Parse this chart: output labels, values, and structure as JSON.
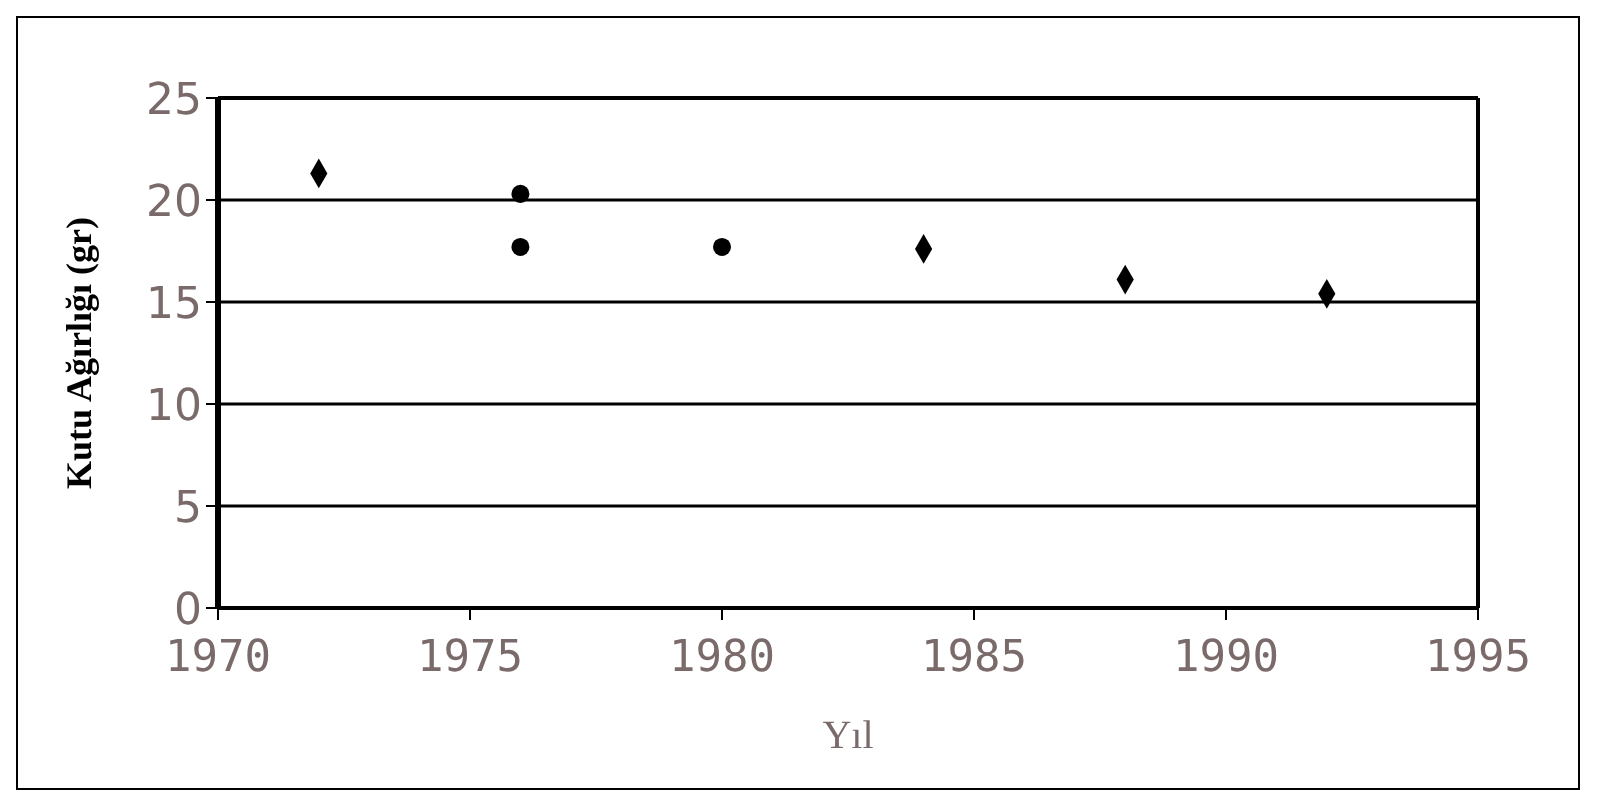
{
  "chart_data": {
    "type": "scatter",
    "xlabel": "Yıl",
    "ylabel": "Kutu Ağırlığı (gr)",
    "xlim": [
      1970,
      1995
    ],
    "xticks": [
      1970,
      1975,
      1980,
      1985,
      1990,
      1995
    ],
    "ylim": [
      0,
      25
    ],
    "yticks": [
      0,
      5,
      10,
      15,
      20,
      25
    ],
    "grid": "y",
    "series": [
      {
        "color": "#000000",
        "marker": "diamond",
        "x": [
          1972,
          1984,
          1988,
          1992
        ],
        "values": [
          21.3,
          17.6,
          16.1,
          15.4
        ]
      },
      {
        "color": "#000000",
        "marker": "circle",
        "x": [
          1976,
          1976,
          1980
        ],
        "values": [
          20.3,
          17.7,
          17.7
        ]
      }
    ]
  }
}
